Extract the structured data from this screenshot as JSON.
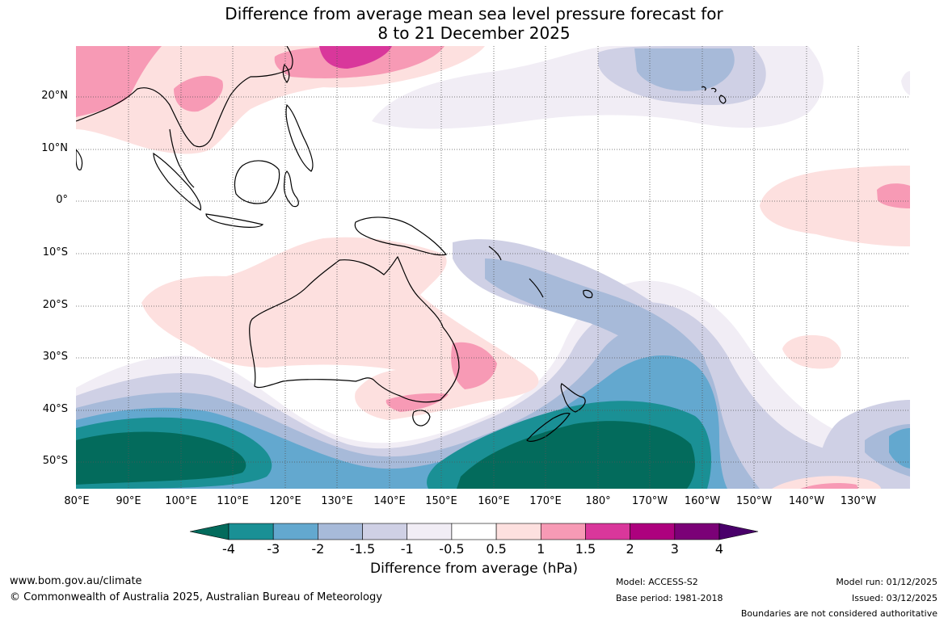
{
  "title": {
    "line1": "Difference from average mean sea level pressure forecast for",
    "line2": "8 to 21 December 2025"
  },
  "map": {
    "latitude_labels": [
      "20°N",
      "10°N",
      "0°",
      "10°S",
      "20°S",
      "30°S",
      "40°S",
      "50°S"
    ],
    "longitude_labels": [
      "80°E",
      "90°E",
      "100°E",
      "110°E",
      "120°E",
      "130°E",
      "140°E",
      "150°E",
      "160°E",
      "170°E",
      "180°",
      "170°W",
      "160°W",
      "150°W",
      "140°W",
      "130°W"
    ],
    "extent": {
      "lon_min_deg_e": 80,
      "lon_max_deg_e": 240,
      "lat_min": -55,
      "lat_max": 30
    }
  },
  "legend": {
    "ticks": [
      "-4",
      "-3",
      "-2",
      "-1.5",
      "-1",
      "-0.5",
      "0.5",
      "1",
      "1.5",
      "2",
      "3",
      "4"
    ],
    "label": "Difference from average (hPa)",
    "colors": [
      "#036b5c",
      "#1a9095",
      "#63a8cf",
      "#a7bad9",
      "#cfd0e5",
      "#f1edf5",
      "#ffffff",
      "#fde0df",
      "#f79ab5",
      "#d9379b",
      "#ad017e",
      "#7b0177",
      "#49006a"
    ]
  },
  "footer": {
    "website": "www.bom.gov.au/climate",
    "copyright": "© Commonwealth of Australia 2025, Australian Bureau of Meteorology",
    "model": "Model: ACCESS-S2",
    "base_period": "Base period: 1981-2018",
    "model_run": "Model run: 01/12/2025",
    "issued": "Issued: 03/12/2025",
    "disclaimer": "Boundaries are not considered authoritative"
  }
}
